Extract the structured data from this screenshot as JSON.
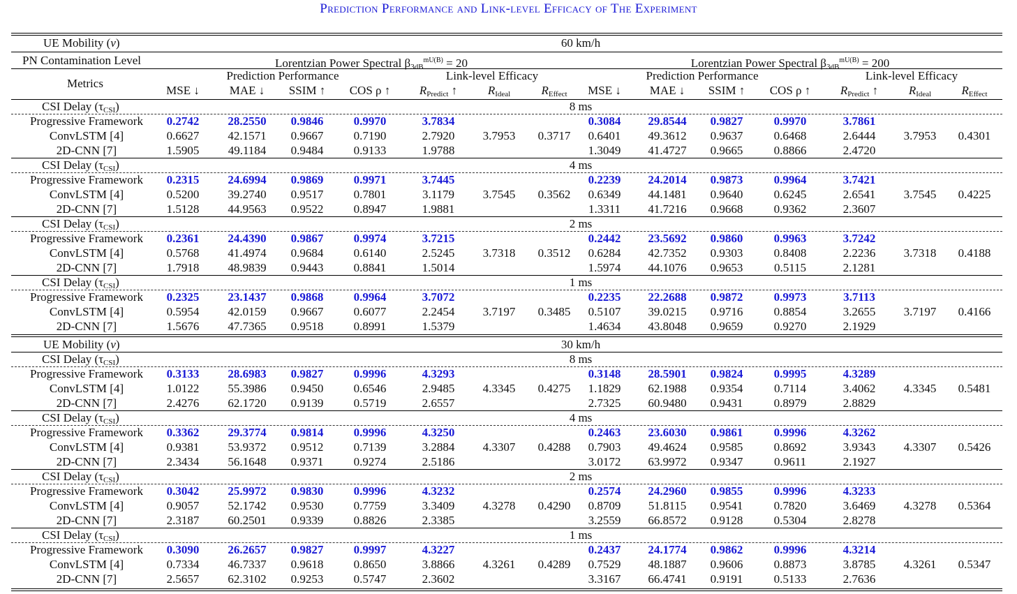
{
  "title": "Prediction Performance and Link-level Efficacy of The Experiment",
  "labels": {
    "mobility": "UE Mobility (v)",
    "pn_level": "PN Contamination Level",
    "metrics": "Metrics",
    "csi_delay": "CSI Delay (τ",
    "csi_sub": "CSI",
    "csi_close": ")",
    "lorentz_prefix": "Lorentzian Power Spectral β",
    "lorentz_sub": "3dB",
    "lorentz_sup": "mU(B)",
    "lorentz_left_val": " = 20",
    "lorentz_right_val": " = 200",
    "group_pred": "Prediction Performance",
    "group_link": "Link-level Efficacy",
    "col_mse": "MSE ↓",
    "col_mae": "MAE ↓",
    "col_ssim": "SSIM ↑",
    "col_cos": "COS ρ ↑",
    "col_r": "R",
    "sub_predict": "Predict",
    "sub_ideal": "Ideal",
    "sub_effect": "Effect",
    "arrow_up": " ↑"
  },
  "sections": [
    {
      "mobility": "60 km/h",
      "blocks": [
        {
          "delay": "8 ms",
          "rows": [
            [
              "Progressive Framework",
              "0.2742",
              "28.2550",
              "0.9846",
              "0.9970",
              "3.7834",
              "",
              "",
              "0.3084",
              "29.8544",
              "0.9827",
              "0.9970",
              "3.7861",
              "",
              ""
            ],
            [
              "ConvLSTM [4]",
              "0.6627",
              "42.1571",
              "0.9667",
              "0.7190",
              "2.7920",
              "3.7953",
              "0.3717",
              "0.6401",
              "49.3612",
              "0.9637",
              "0.6468",
              "2.6444",
              "3.7953",
              "0.4301"
            ],
            [
              "2D-CNN [7]",
              "1.5905",
              "49.1184",
              "0.9484",
              "0.9133",
              "1.9788",
              "",
              "",
              "1.3049",
              "41.4727",
              "0.9665",
              "0.8866",
              "2.4720",
              "",
              ""
            ]
          ]
        },
        {
          "delay": "4 ms",
          "rows": [
            [
              "Progressive Framework",
              "0.2315",
              "24.6994",
              "0.9869",
              "0.9971",
              "3.7445",
              "",
              "",
              "0.2239",
              "24.2014",
              "0.9873",
              "0.9964",
              "3.7421",
              "",
              ""
            ],
            [
              "ConvLSTM [4]",
              "0.5200",
              "39.2740",
              "0.9517",
              "0.7801",
              "3.1179",
              "3.7545",
              "0.3562",
              "0.6349",
              "44.1481",
              "0.9640",
              "0.6245",
              "2.6541",
              "3.7545",
              "0.4225"
            ],
            [
              "2D-CNN [7]",
              "1.5128",
              "44.9563",
              "0.9522",
              "0.8947",
              "1.9881",
              "",
              "",
              "1.3311",
              "41.7216",
              "0.9668",
              "0.9362",
              "2.3607",
              "",
              ""
            ]
          ]
        },
        {
          "delay": "2 ms",
          "rows": [
            [
              "Progressive Framework",
              "0.2361",
              "24.4390",
              "0.9867",
              "0.9974",
              "3.7215",
              "",
              "",
              "0.2442",
              "23.5692",
              "0.9860",
              "0.9963",
              "3.7242",
              "",
              ""
            ],
            [
              "ConvLSTM [4]",
              "0.5768",
              "41.4974",
              "0.9684",
              "0.6140",
              "2.5245",
              "3.7318",
              "0.3512",
              "0.6284",
              "42.7352",
              "0.9303",
              "0.8408",
              "2.2236",
              "3.7318",
              "0.4188"
            ],
            [
              "2D-CNN [7]",
              "1.7918",
              "48.9839",
              "0.9443",
              "0.8841",
              "1.5014",
              "",
              "",
              "1.5974",
              "44.1076",
              "0.9653",
              "0.5115",
              "2.1281",
              "",
              ""
            ]
          ]
        },
        {
          "delay": "1 ms",
          "rows": [
            [
              "Progressive Framework",
              "0.2325",
              "23.1437",
              "0.9868",
              "0.9964",
              "3.7072",
              "",
              "",
              "0.2235",
              "22.2688",
              "0.9872",
              "0.9973",
              "3.7113",
              "",
              ""
            ],
            [
              "ConvLSTM [4]",
              "0.5954",
              "42.0159",
              "0.9667",
              "0.6077",
              "2.2454",
              "3.7197",
              "0.3485",
              "0.5107",
              "39.0215",
              "0.9716",
              "0.8854",
              "3.2655",
              "3.7197",
              "0.4166"
            ],
            [
              "2D-CNN [7]",
              "1.5676",
              "47.7365",
              "0.9518",
              "0.8991",
              "1.5379",
              "",
              "",
              "1.4634",
              "43.8048",
              "0.9659",
              "0.9270",
              "2.1929",
              "",
              ""
            ]
          ]
        }
      ]
    },
    {
      "mobility": "30 km/h",
      "blocks": [
        {
          "delay": "8 ms",
          "rows": [
            [
              "Progressive Framework",
              "0.3133",
              "28.6983",
              "0.9827",
              "0.9996",
              "4.3293",
              "",
              "",
              "0.3148",
              "28.5901",
              "0.9824",
              "0.9995",
              "4.3289",
              "",
              ""
            ],
            [
              "ConvLSTM [4]",
              "1.0122",
              "55.3986",
              "0.9450",
              "0.6546",
              "2.9485",
              "4.3345",
              "0.4275",
              "1.1829",
              "62.1988",
              "0.9354",
              "0.7114",
              "3.4062",
              "4.3345",
              "0.5481"
            ],
            [
              "2D-CNN [7]",
              "2.4276",
              "62.1720",
              "0.9139",
              "0.5719",
              "2.6557",
              "",
              "",
              "2.7325",
              "60.9480",
              "0.9431",
              "0.8979",
              "2.8829",
              "",
              ""
            ]
          ]
        },
        {
          "delay": "4 ms",
          "rows": [
            [
              "Progressive Framework",
              "0.3362",
              "29.3774",
              "0.9814",
              "0.9996",
              "4.3250",
              "",
              "",
              "0.2463",
              "23.6030",
              "0.9861",
              "0.9996",
              "4.3262",
              "",
              ""
            ],
            [
              "ConvLSTM [4]",
              "0.9381",
              "53.9372",
              "0.9512",
              "0.7139",
              "3.2884",
              "4.3307",
              "0.4288",
              "0.7903",
              "49.4624",
              "0.9585",
              "0.8692",
              "3.9343",
              "4.3307",
              "0.5426"
            ],
            [
              "2D-CNN [7]",
              "2.3434",
              "56.1648",
              "0.9371",
              "0.9274",
              "2.5186",
              "",
              "",
              "3.0172",
              "63.9972",
              "0.9347",
              "0.9611",
              "2.1927",
              "",
              ""
            ]
          ]
        },
        {
          "delay": "2 ms",
          "rows": [
            [
              "Progressive Framework",
              "0.3042",
              "25.9972",
              "0.9830",
              "0.9996",
              "4.3232",
              "",
              "",
              "0.2574",
              "24.2960",
              "0.9855",
              "0.9996",
              "4.3233",
              "",
              ""
            ],
            [
              "ConvLSTM [4]",
              "0.9057",
              "52.1742",
              "0.9530",
              "0.7759",
              "3.3409",
              "4.3278",
              "0.4290",
              "0.8709",
              "51.8115",
              "0.9541",
              "0.7820",
              "3.6469",
              "4.3278",
              "0.5364"
            ],
            [
              "2D-CNN [7]",
              "2.3187",
              "60.2501",
              "0.9339",
              "0.8826",
              "2.3385",
              "",
              "",
              "3.2559",
              "66.8572",
              "0.9128",
              "0.5304",
              "2.8278",
              "",
              ""
            ]
          ]
        },
        {
          "delay": "1 ms",
          "rows": [
            [
              "Progressive Framework",
              "0.3090",
              "26.2657",
              "0.9827",
              "0.9997",
              "4.3227",
              "",
              "",
              "0.2437",
              "24.1774",
              "0.9862",
              "0.9996",
              "4.3214",
              "",
              ""
            ],
            [
              "ConvLSTM [4]",
              "0.7334",
              "46.7337",
              "0.9618",
              "0.8650",
              "3.8866",
              "4.3261",
              "0.4289",
              "0.7529",
              "48.1887",
              "0.9606",
              "0.8873",
              "3.8785",
              "4.3261",
              "0.5347"
            ],
            [
              "2D-CNN [7]",
              "2.5657",
              "62.3102",
              "0.9253",
              "0.5747",
              "2.3602",
              "",
              "",
              "3.3167",
              "66.4741",
              "0.9191",
              "0.5133",
              "2.7636",
              "",
              ""
            ]
          ]
        }
      ]
    }
  ]
}
